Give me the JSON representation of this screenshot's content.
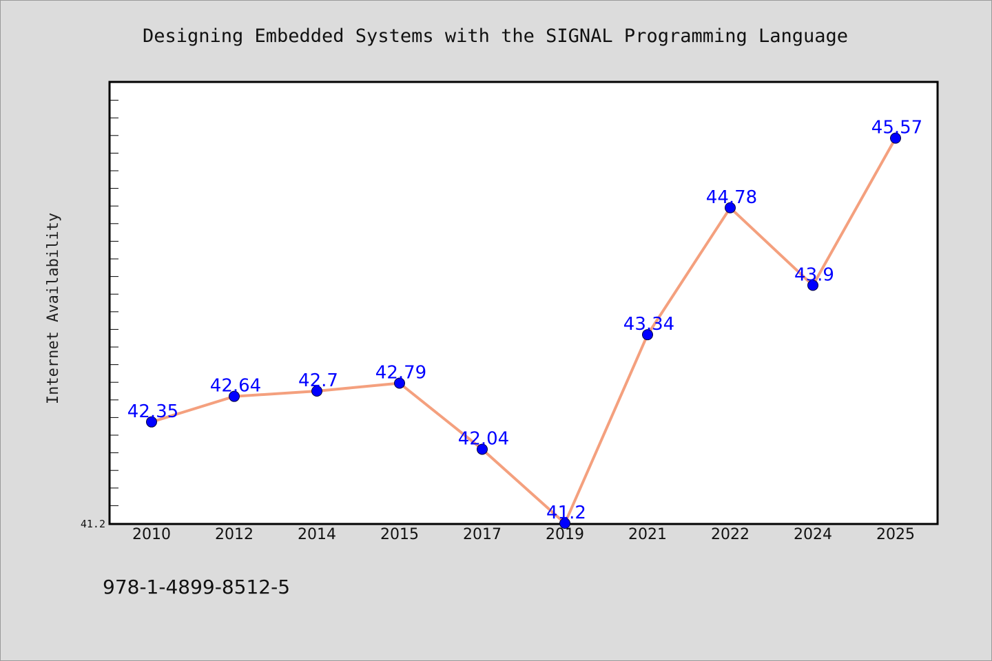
{
  "chart_data": {
    "type": "line",
    "title": "Designing Embedded Systems with the SIGNAL Programming Language",
    "xlabel": "",
    "ylabel": "Internet Availability",
    "categories": [
      "2010",
      "2012",
      "2014",
      "2015",
      "2017",
      "2019",
      "2021",
      "2022",
      "2024",
      "2025"
    ],
    "series": [
      {
        "values": [
          42.35,
          42.64,
          42.7,
          42.79,
          42.04,
          41.2,
          43.34,
          44.78,
          43.9,
          45.57
        ],
        "labels": [
          "42.35",
          "42.64",
          "42.7",
          "42.79",
          "42.04",
          "41.2",
          "43.34",
          "44.78",
          "43.9",
          "45.57"
        ]
      }
    ],
    "ylim": [
      41.2,
      46.2
    ],
    "y_tick_labels": [
      "41.2"
    ],
    "grid": false,
    "legend": "none",
    "colors": {
      "line": "#f4a07e",
      "marker": "#0000ff",
      "label": "#0000ff",
      "plot_background": "#ffffff",
      "page_background": "#dcdcdc"
    }
  },
  "footer": {
    "isbn": "978-1-4899-8512-5"
  }
}
